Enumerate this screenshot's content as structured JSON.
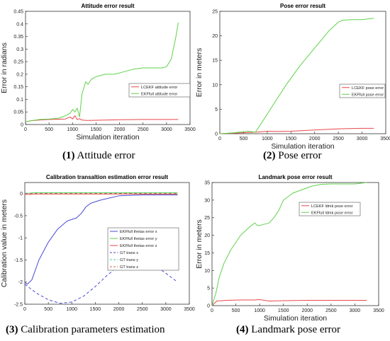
{
  "captions": [
    {
      "num": "(1)",
      "text": "Attitude error"
    },
    {
      "num": "(2)",
      "text": "Pose error"
    },
    {
      "num": "(3)",
      "text": "Calibration parameters estimation"
    },
    {
      "num": "(4)",
      "text": "Landmark pose error"
    }
  ],
  "chart_data": [
    {
      "type": "line",
      "title": "Attitude error result",
      "xlabel": "Simulation iteration",
      "ylabel": "Error in radians",
      "xlim": [
        0,
        3500
      ],
      "ylim": [
        0,
        0.45
      ],
      "xticks": [
        0,
        500,
        1000,
        1500,
        2000,
        2500,
        3000,
        3500
      ],
      "yticks": [
        0,
        0.05,
        0.1,
        0.15,
        0.2,
        0.25,
        0.3,
        0.35,
        0.4,
        0.45
      ],
      "legend_position": "right",
      "series": [
        {
          "name": "LCEKF attitude error",
          "color": "#e8474a",
          "dash": "solid",
          "x": [
            0,
            100,
            300,
            500,
            700,
            850,
            950,
            1000,
            1050,
            1100,
            1150,
            1200,
            1300,
            1500,
            2000,
            2500,
            3000,
            3250
          ],
          "y": [
            0.01,
            0.015,
            0.018,
            0.02,
            0.021,
            0.022,
            0.03,
            0.022,
            0.035,
            0.02,
            0.023,
            0.018,
            0.016,
            0.017,
            0.019,
            0.02,
            0.02,
            0.02
          ]
        },
        {
          "name": "EKFfull attitude error",
          "color": "#5fd24a",
          "dash": "solid",
          "x": [
            0,
            100,
            300,
            500,
            700,
            850,
            950,
            1000,
            1050,
            1100,
            1150,
            1200,
            1280,
            1330,
            1400,
            1500,
            1700,
            1900,
            2100,
            2300,
            2500,
            2700,
            2900,
            3000,
            3100,
            3200,
            3250
          ],
          "y": [
            0.01,
            0.015,
            0.02,
            0.022,
            0.025,
            0.035,
            0.045,
            0.06,
            0.05,
            0.065,
            0.03,
            0.12,
            0.17,
            0.16,
            0.18,
            0.19,
            0.2,
            0.2,
            0.21,
            0.22,
            0.225,
            0.225,
            0.225,
            0.23,
            0.26,
            0.35,
            0.405
          ]
        }
      ]
    },
    {
      "type": "line",
      "title": "Pose error result",
      "xlabel": "Simulation iteration",
      "ylabel": "Error in meters",
      "xlim": [
        0,
        3500
      ],
      "ylim": [
        0,
        25
      ],
      "xticks": [
        0,
        500,
        1000,
        1500,
        2000,
        2500,
        3000,
        3500
      ],
      "yticks": [
        0,
        5,
        10,
        15,
        20,
        25
      ],
      "legend_position": "right",
      "series": [
        {
          "name": "LCEKF pose error",
          "color": "#e8474a",
          "dash": "solid",
          "x": [
            0,
            500,
            800,
            1000,
            1200,
            1500,
            2000,
            2500,
            3000,
            3250
          ],
          "y": [
            0,
            0.2,
            0.35,
            0.5,
            0.45,
            0.5,
            0.75,
            1.0,
            1.1,
            1.1
          ]
        },
        {
          "name": "EKFfull pose error",
          "color": "#5fd24a",
          "dash": "solid",
          "x": [
            0,
            300,
            600,
            750,
            900,
            1100,
            1400,
            1700,
            2000,
            2300,
            2500,
            2600,
            2800,
            3000,
            3250
          ],
          "y": [
            0,
            0.2,
            0.5,
            0.3,
            2.5,
            5.5,
            10,
            14,
            17.5,
            21,
            22.8,
            23.2,
            23.3,
            23.3,
            23.6
          ]
        }
      ]
    },
    {
      "type": "line",
      "title": "Calibration transaltion estimation error result",
      "xlabel": "",
      "ylabel": "Calibration value in meters",
      "xlim": [
        0,
        3500
      ],
      "ylim": [
        -2.5,
        0.25
      ],
      "xticks": [
        0,
        500,
        1000,
        1500,
        2000,
        2500,
        3000,
        3500
      ],
      "yticks": [
        -2.5,
        -2,
        -1.5,
        -1,
        -0.5,
        0
      ],
      "legend_position": "right",
      "series": [
        {
          "name": "EKFfull thetas error x",
          "color": "#4a4ad6",
          "dash": "solid",
          "x": [
            0,
            50,
            150,
            300,
            500,
            700,
            900,
            1100,
            1200,
            1300,
            1400,
            1600,
            1800,
            2000,
            2500,
            3000,
            3250
          ],
          "y": [
            -2.0,
            -2.05,
            -1.95,
            -1.5,
            -1.1,
            -0.8,
            -0.62,
            -0.55,
            -0.45,
            -0.3,
            -0.22,
            -0.15,
            -0.1,
            -0.05,
            -0.03,
            -0.03,
            -0.03
          ]
        },
        {
          "name": "EKFfull thetas error y",
          "color": "#5fd24a",
          "dash": "solid",
          "x": [
            0,
            200,
            500,
            1000,
            1500,
            2000,
            2500,
            3000,
            3250
          ],
          "y": [
            0.0,
            0.02,
            0.02,
            0.02,
            0.02,
            0.02,
            0.02,
            0.02,
            0.02
          ]
        },
        {
          "name": "EKFfull thetas error z",
          "color": "#e8474a",
          "dash": "solid",
          "x": [
            0,
            200,
            500,
            1000,
            1500,
            2000,
            2500,
            3000,
            3250
          ],
          "y": [
            -0.02,
            -0.01,
            -0.01,
            -0.01,
            -0.01,
            -0.01,
            -0.01,
            -0.01,
            -0.01
          ]
        },
        {
          "name": "GT trans x",
          "color": "#4a4ad6",
          "dash": "dashed",
          "x": [
            0,
            250,
            500,
            750,
            1000,
            1250,
            1500,
            1750,
            2000,
            2250,
            2500,
            2750,
            3000,
            3250
          ],
          "y": [
            -2.05,
            -2.25,
            -2.4,
            -2.48,
            -2.45,
            -2.32,
            -2.1,
            -1.85,
            -1.63,
            -1.5,
            -1.5,
            -1.62,
            -1.8,
            -2.0
          ]
        },
        {
          "name": "GT trans y",
          "color": "#3cc8b8",
          "dash": "dashed",
          "x": [
            0,
            1000,
            2000,
            3250
          ],
          "y": [
            0.01,
            0.01,
            0.01,
            0.01
          ]
        },
        {
          "name": "GT trans z",
          "color": "#d4604a",
          "dash": "dashed",
          "x": [
            0,
            1000,
            2000,
            3250
          ],
          "y": [
            0.0,
            0.0,
            0.0,
            0.0
          ]
        }
      ]
    },
    {
      "type": "line",
      "title": "Landmark pose error result",
      "xlabel": "Simulation iteration",
      "ylabel": "Error in meters",
      "xlim": [
        0,
        3500
      ],
      "ylim": [
        0,
        35
      ],
      "xticks": [
        0,
        500,
        1000,
        1500,
        2000,
        2500,
        3000,
        3500
      ],
      "yticks": [
        0,
        5,
        10,
        15,
        20,
        25,
        30,
        35
      ],
      "legend_position": "top-right",
      "series": [
        {
          "name": "LCEKF ldmk pose error",
          "color": "#e8474a",
          "dash": "solid",
          "x": [
            0,
            100,
            300,
            600,
            900,
            1000,
            1200,
            1500,
            2000,
            2500,
            3000,
            3250
          ],
          "y": [
            0,
            1.3,
            1.5,
            1.6,
            1.6,
            1.7,
            1.3,
            1.4,
            1.5,
            1.5,
            1.5,
            1.5
          ]
        },
        {
          "name": "EKFfull ldmk pose error",
          "color": "#5fd24a",
          "dash": "solid",
          "x": [
            0,
            80,
            150,
            250,
            400,
            600,
            800,
            900,
            950,
            1000,
            1200,
            1300,
            1400,
            1500,
            1550,
            1700,
            1900,
            2100,
            2300,
            2500,
            3000,
            3250
          ],
          "y": [
            0,
            3.5,
            8,
            12,
            16,
            20,
            22.5,
            23.5,
            22.8,
            22.8,
            23.5,
            25,
            27,
            30,
            30.5,
            32,
            33,
            34,
            34.5,
            34.6,
            34.6,
            35
          ]
        }
      ]
    }
  ]
}
